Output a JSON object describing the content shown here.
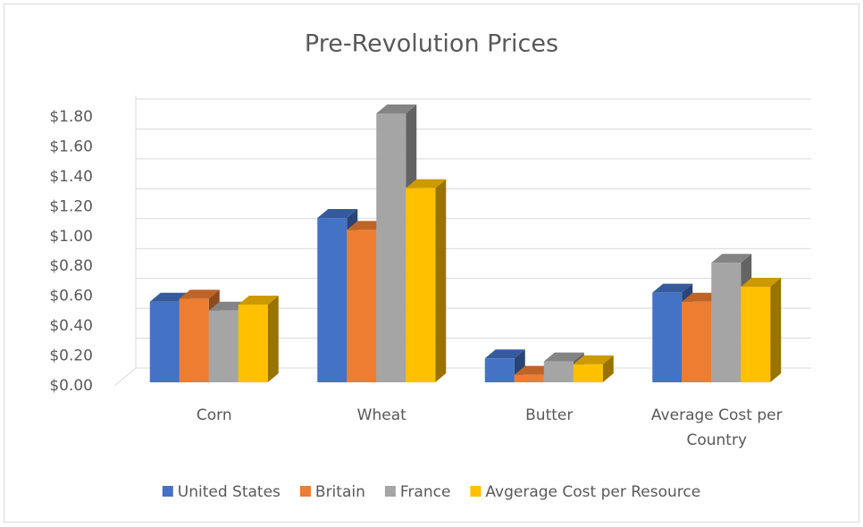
{
  "chart_data": {
    "type": "bar3d",
    "title": "Pre-Revolution Prices",
    "categories": [
      "Corn",
      "Wheat",
      "Butter",
      "Average Cost per Country"
    ],
    "series": [
      {
        "name": "United States",
        "color": "#4472c4",
        "values": [
          0.54,
          1.1,
          0.16,
          0.6
        ]
      },
      {
        "name": "Britain",
        "color": "#ed7d31",
        "values": [
          0.56,
          1.02,
          0.05,
          0.54
        ]
      },
      {
        "name": "France",
        "color": "#a5a5a5",
        "values": [
          0.48,
          1.8,
          0.14,
          0.8
        ]
      },
      {
        "name": "Avgerage Cost per Resource",
        "color": "#ffc000",
        "values": [
          0.52,
          1.3,
          0.12,
          0.64
        ]
      }
    ],
    "ylim": [
      0,
      1.8
    ],
    "yticks": [
      {
        "value": 0,
        "label": "$0.00"
      },
      {
        "value": 0.2,
        "label": "$0.20"
      },
      {
        "value": 0.4,
        "label": "$0.40"
      },
      {
        "value": 0.6,
        "label": "$0.60"
      },
      {
        "value": 0.8,
        "label": "$0.80"
      },
      {
        "value": 1.0,
        "label": "$1.00"
      },
      {
        "value": 1.2,
        "label": "$1.20"
      },
      {
        "value": 1.4,
        "label": "$1.40"
      },
      {
        "value": 1.6,
        "label": "$1.60"
      },
      {
        "value": 1.8,
        "label": "$1.80"
      }
    ],
    "grid": true,
    "legend": "bottom"
  }
}
